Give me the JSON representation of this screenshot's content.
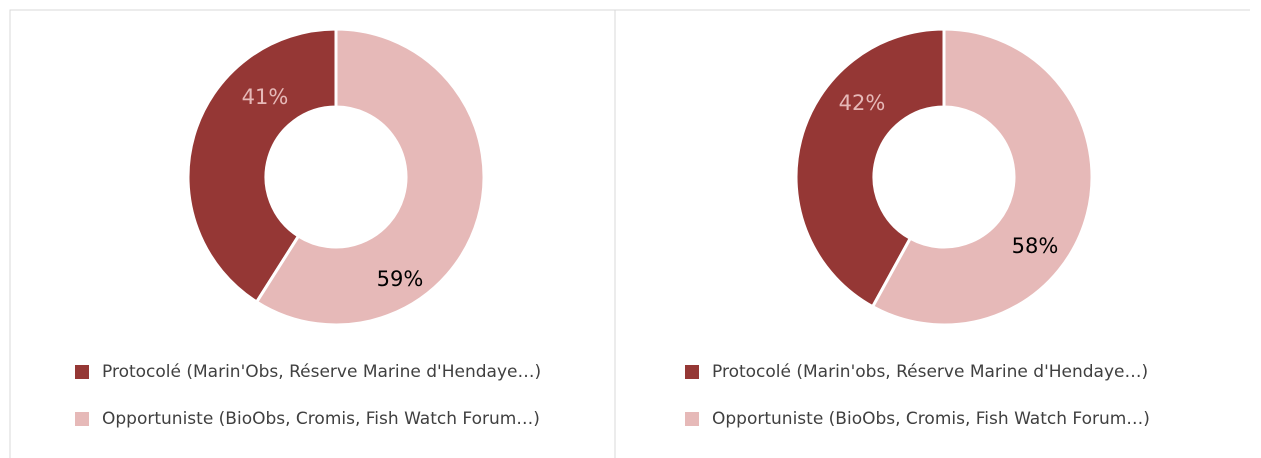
{
  "chart_data": [
    {
      "type": "pie",
      "donut": true,
      "series": [
        {
          "name": "Protocolé (Marin'Obs, Réserve Marine d'Hendaye…)",
          "color": "#953735",
          "values": [
            41
          ],
          "value_labels": [
            "41%"
          ]
        },
        {
          "name": "Opportuniste (BioObs, Cromis, Fish Watch Forum…)",
          "color": "#e6b9b8",
          "values": [
            59
          ],
          "value_labels": [
            "59%"
          ]
        }
      ]
    },
    {
      "type": "pie",
      "donut": true,
      "series": [
        {
          "name": "Protocolé (Marin'obs, Réserve Marine d'Hendaye…)",
          "color": "#953735",
          "values": [
            42
          ],
          "value_labels": [
            "42%"
          ]
        },
        {
          "name": "Opportuniste (BioObs, Cromis, Fish Watch Forum…)",
          "color": "#e6b9b8",
          "values": [
            58
          ],
          "value_labels": [
            "58%"
          ]
        }
      ]
    }
  ]
}
